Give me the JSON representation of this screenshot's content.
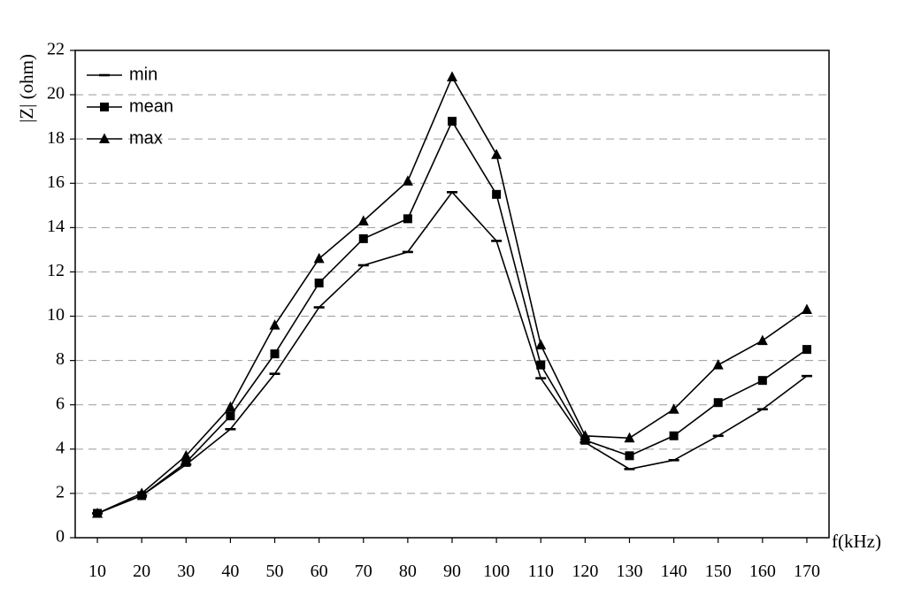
{
  "chart_data": {
    "type": "line",
    "title": "",
    "xlabel": "f(kHz)",
    "ylabel": "|Z| (ohm)",
    "x": [
      10,
      20,
      30,
      40,
      50,
      60,
      70,
      80,
      90,
      100,
      110,
      120,
      130,
      140,
      150,
      160,
      170
    ],
    "x_tick_labels": [
      "10",
      "20",
      "30",
      "40",
      "50",
      "60",
      "70",
      "80",
      "90",
      "100",
      "110",
      "120",
      "130",
      "140",
      "150",
      "160",
      "170"
    ],
    "ylim": [
      0,
      22
    ],
    "y_ticks": [
      0,
      2,
      4,
      6,
      8,
      10,
      12,
      14,
      16,
      18,
      20,
      22
    ],
    "y_tick_labels": [
      "0",
      "2",
      "4",
      "6",
      "8",
      "10",
      "12",
      "14",
      "16",
      "18",
      "20",
      "22"
    ],
    "grid": "horizontal dashed",
    "legend_position": "top-left",
    "series": [
      {
        "name": "min",
        "marker": "dash",
        "values": [
          1.1,
          1.9,
          3.3,
          4.9,
          7.4,
          10.4,
          12.3,
          12.9,
          15.6,
          13.4,
          7.2,
          4.3,
          3.1,
          3.5,
          4.6,
          5.8,
          7.3
        ]
      },
      {
        "name": "mean",
        "marker": "square",
        "values": [
          1.1,
          1.9,
          3.4,
          5.5,
          8.3,
          11.5,
          13.5,
          14.4,
          18.8,
          15.5,
          7.8,
          4.4,
          3.7,
          4.6,
          6.1,
          7.1,
          8.5
        ]
      },
      {
        "name": "max",
        "marker": "triangle",
        "values": [
          1.1,
          2.0,
          3.7,
          5.9,
          9.6,
          12.6,
          14.3,
          16.1,
          20.8,
          17.3,
          8.7,
          4.6,
          4.5,
          5.8,
          7.8,
          8.9,
          10.3
        ]
      }
    ]
  }
}
